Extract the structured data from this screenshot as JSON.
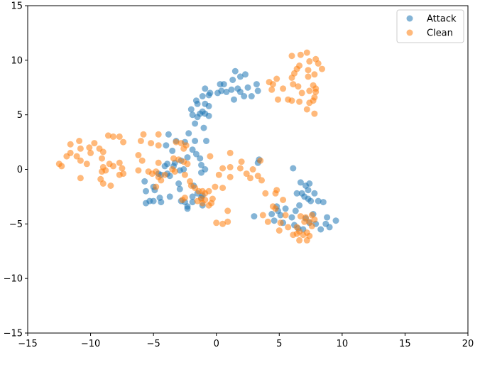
{
  "chart_data": {
    "type": "scatter",
    "title": "",
    "xlabel": "",
    "ylabel": "",
    "xlim": [
      -15,
      20
    ],
    "ylim": [
      -15,
      15
    ],
    "xticks": [
      -15,
      -10,
      -5,
      0,
      5,
      10,
      15,
      20
    ],
    "yticks": [
      -15,
      -10,
      -5,
      0,
      5,
      10,
      15
    ],
    "grid": false,
    "legend_position": "top-right",
    "series": [
      {
        "name": "Attack",
        "color": "#1f77b4",
        "points": [
          [
            1.5,
            9.0
          ],
          [
            2.3,
            8.7
          ],
          [
            1.9,
            8.5
          ],
          [
            1.3,
            8.2
          ],
          [
            0.6,
            7.8
          ],
          [
            0.3,
            7.8
          ],
          [
            1.7,
            7.4
          ],
          [
            2.5,
            7.5
          ],
          [
            3.2,
            7.8
          ],
          [
            3.3,
            7.2
          ],
          [
            2.8,
            6.7
          ],
          [
            2.2,
            6.7
          ],
          [
            1.9,
            7.1
          ],
          [
            1.2,
            7.3
          ],
          [
            0.8,
            7.1
          ],
          [
            0.1,
            7.0
          ],
          [
            0.4,
            7.2
          ],
          [
            -0.5,
            7.0
          ],
          [
            -0.9,
            7.4
          ],
          [
            -1.1,
            6.7
          ],
          [
            -0.6,
            6.8
          ],
          [
            -1.6,
            6.3
          ],
          [
            -1.5,
            6.0
          ],
          [
            -2.0,
            5.5
          ],
          [
            -0.6,
            5.8
          ],
          [
            -0.9,
            6.0
          ],
          [
            -1.1,
            5.3
          ],
          [
            -0.9,
            5.1
          ],
          [
            -1.3,
            5.1
          ],
          [
            -0.6,
            4.9
          ],
          [
            -1.9,
            5.0
          ],
          [
            -1.5,
            4.8
          ],
          [
            -1.7,
            4.2
          ],
          [
            -1.0,
            3.8
          ],
          [
            1.4,
            6.4
          ],
          [
            -2.2,
            3.3
          ],
          [
            -3.8,
            3.2
          ],
          [
            -3.2,
            2.6
          ],
          [
            -4.0,
            2.2
          ],
          [
            -2.5,
            2.5
          ],
          [
            -1.7,
            2.6
          ],
          [
            -0.8,
            2.6
          ],
          [
            -3.5,
            1.7
          ],
          [
            -1.9,
            1.8
          ],
          [
            -2.3,
            1.1
          ],
          [
            -1.6,
            1.4
          ],
          [
            -1.3,
            1.0
          ],
          [
            -2.8,
            0.8
          ],
          [
            -3.3,
            0.6
          ],
          [
            -3.9,
            0.5
          ],
          [
            -4.1,
            0.3
          ],
          [
            -3.4,
            0.3
          ],
          [
            -1.2,
            0.4
          ],
          [
            -2.6,
            0.0
          ],
          [
            -2.9,
            -0.1
          ],
          [
            -3.7,
            -0.6
          ],
          [
            -3.9,
            -0.4
          ],
          [
            -4.4,
            -0.5
          ],
          [
            -4.6,
            -0.4
          ],
          [
            -5.7,
            -1.1
          ],
          [
            -5.0,
            -1.6
          ],
          [
            -4.9,
            -1.9
          ],
          [
            -5.6,
            -2.0
          ],
          [
            -4.5,
            -2.6
          ],
          [
            -5.3,
            -2.9
          ],
          [
            -5.0,
            -2.9
          ],
          [
            -5.6,
            -3.1
          ],
          [
            -4.4,
            -3.0
          ],
          [
            -3.7,
            -2.5
          ],
          [
            -3.0,
            -1.3
          ],
          [
            -2.9,
            -1.8
          ],
          [
            -1.8,
            -1.5
          ],
          [
            -1.5,
            -2.2
          ],
          [
            -1.9,
            -2.5
          ],
          [
            -2.5,
            -3.0
          ],
          [
            -2.3,
            -3.4
          ],
          [
            -2.3,
            -3.6
          ],
          [
            -2.8,
            -2.9
          ],
          [
            -1.9,
            -3.0
          ],
          [
            -1.2,
            -2.6
          ],
          [
            -1.1,
            -3.3
          ],
          [
            -1.1,
            -2.4
          ],
          [
            -1.2,
            -0.3
          ],
          [
            -0.9,
            0.0
          ],
          [
            3.4,
            0.9
          ],
          [
            3.3,
            0.6
          ],
          [
            3.0,
            -4.3
          ],
          [
            4.4,
            -4.1
          ],
          [
            4.6,
            -4.7
          ],
          [
            4.9,
            -3.8
          ],
          [
            4.8,
            -3.4
          ],
          [
            5.1,
            -4.2
          ],
          [
            5.5,
            -3.6
          ],
          [
            5.3,
            -4.9
          ],
          [
            6.2,
            -5.1
          ],
          [
            6.5,
            -5.4
          ],
          [
            6.0,
            -4.4
          ],
          [
            6.3,
            -3.8
          ],
          [
            6.4,
            -2.2
          ],
          [
            6.1,
            0.1
          ],
          [
            6.7,
            -1.2
          ],
          [
            7.1,
            -1.5
          ],
          [
            7.4,
            -1.3
          ],
          [
            6.8,
            -2.2
          ],
          [
            7.0,
            -2.5
          ],
          [
            7.3,
            -2.7
          ],
          [
            7.3,
            -1.9
          ],
          [
            7.5,
            -2.9
          ],
          [
            7.8,
            -2.2
          ],
          [
            8.1,
            -2.9
          ],
          [
            8.5,
            -3.0
          ],
          [
            6.6,
            -3.3
          ],
          [
            7.7,
            -4.1
          ],
          [
            7.1,
            -4.5
          ],
          [
            7.9,
            -5.0
          ],
          [
            8.8,
            -4.4
          ],
          [
            8.7,
            -5.0
          ],
          [
            8.3,
            -5.5
          ],
          [
            9.0,
            -5.3
          ],
          [
            9.5,
            -4.7
          ],
          [
            7.4,
            -4.9
          ],
          [
            6.9,
            -5.5
          ]
        ]
      },
      {
        "name": "Clean",
        "color": "#ff7f0e",
        "points": [
          [
            6.0,
            10.4
          ],
          [
            6.7,
            10.5
          ],
          [
            7.2,
            10.7
          ],
          [
            7.4,
            9.9
          ],
          [
            6.6,
            9.5
          ],
          [
            7.3,
            9.1
          ],
          [
            6.4,
            9.2
          ],
          [
            6.2,
            8.8
          ],
          [
            7.9,
            10.1
          ],
          [
            8.1,
            9.7
          ],
          [
            8.4,
            9.2
          ],
          [
            7.8,
            8.7
          ],
          [
            7.3,
            8.5
          ],
          [
            6.0,
            8.4
          ],
          [
            4.8,
            8.3
          ],
          [
            4.2,
            8.0
          ],
          [
            4.5,
            7.8
          ],
          [
            4.4,
            7.3
          ],
          [
            5.3,
            7.4
          ],
          [
            6.1,
            7.8
          ],
          [
            6.5,
            7.6
          ],
          [
            6.8,
            7.0
          ],
          [
            7.7,
            7.7
          ],
          [
            7.9,
            7.4
          ],
          [
            7.4,
            7.2
          ],
          [
            7.8,
            6.6
          ],
          [
            7.7,
            6.3
          ],
          [
            7.4,
            6.1
          ],
          [
            7.2,
            5.5
          ],
          [
            7.8,
            5.1
          ],
          [
            4.9,
            6.4
          ],
          [
            5.7,
            6.4
          ],
          [
            6.0,
            6.3
          ],
          [
            6.6,
            6.2
          ],
          [
            7.9,
            7.1
          ],
          [
            -12.5,
            0.5
          ],
          [
            -12.3,
            0.3
          ],
          [
            -11.9,
            1.2
          ],
          [
            -11.6,
            1.5
          ],
          [
            -11.1,
            1.2
          ],
          [
            -11.6,
            2.3
          ],
          [
            -10.9,
            2.6
          ],
          [
            -10.8,
            1.9
          ],
          [
            -10.1,
            2.0
          ],
          [
            -10.0,
            1.5
          ],
          [
            -9.7,
            2.4
          ],
          [
            -9.3,
            1.9
          ],
          [
            -9.0,
            1.6
          ],
          [
            -9.1,
            1.0
          ],
          [
            -10.8,
            0.8
          ],
          [
            -10.3,
            0.5
          ],
          [
            -9.0,
            0.2
          ],
          [
            -8.8,
            -0.1
          ],
          [
            -9.1,
            -0.2
          ],
          [
            -8.5,
            0.5
          ],
          [
            -8.2,
            0.3
          ],
          [
            -8.6,
            3.1
          ],
          [
            -8.2,
            3.0
          ],
          [
            -7.7,
            3.0
          ],
          [
            -7.4,
            2.5
          ],
          [
            -7.7,
            0.6
          ],
          [
            -7.5,
            0.1
          ],
          [
            -7.4,
            -0.4
          ],
          [
            -7.7,
            -0.5
          ],
          [
            -9.2,
            -0.9
          ],
          [
            -9.0,
            -1.3
          ],
          [
            -8.4,
            -1.5
          ],
          [
            -10.8,
            -0.8
          ],
          [
            -6.2,
            1.3
          ],
          [
            -6.2,
            -0.1
          ],
          [
            -5.9,
            0.8
          ],
          [
            -5.8,
            3.2
          ],
          [
            -6.0,
            2.6
          ],
          [
            -5.2,
            2.4
          ],
          [
            -4.6,
            3.2
          ],
          [
            -4.6,
            2.2
          ],
          [
            -4.6,
            0.6
          ],
          [
            -3.4,
            1.0
          ],
          [
            -3.0,
            0.9
          ],
          [
            -2.6,
            0.7
          ],
          [
            -2.3,
            0.5
          ],
          [
            -3.3,
            -0.2
          ],
          [
            -3.5,
            0.0
          ],
          [
            -4.6,
            -0.7
          ],
          [
            -4.4,
            -1.0
          ],
          [
            -4.8,
            -1.6
          ],
          [
            -5.4,
            -0.2
          ],
          [
            -5.1,
            -0.4
          ],
          [
            -4.8,
            -0.2
          ],
          [
            -4.1,
            -0.5
          ],
          [
            -3.2,
            2.5
          ],
          [
            -2.8,
            2.4
          ],
          [
            -2.4,
            2.2
          ],
          [
            -2.6,
            1.9
          ],
          [
            -2.5,
            -0.5
          ],
          [
            -2.1,
            -1.1
          ],
          [
            -2.0,
            -1.5
          ],
          [
            -1.7,
            -1.7
          ],
          [
            -1.4,
            -2.0
          ],
          [
            -1.2,
            -2.7
          ],
          [
            -0.9,
            -2.8
          ],
          [
            -1.5,
            -2.9
          ],
          [
            -1.1,
            -3.1
          ],
          [
            -1.1,
            -2.0
          ],
          [
            -0.9,
            -2.2
          ],
          [
            -0.6,
            -2.0
          ],
          [
            -0.3,
            -2.7
          ],
          [
            -0.4,
            -3.1
          ],
          [
            -0.6,
            -3.3
          ],
          [
            -2.5,
            -2.6
          ],
          [
            -2.7,
            -2.8
          ],
          [
            0.5,
            -1.7
          ],
          [
            -0.1,
            -1.6
          ],
          [
            0.0,
            -4.9
          ],
          [
            0.5,
            -5.0
          ],
          [
            0.9,
            -4.8
          ],
          [
            0.9,
            -3.8
          ],
          [
            0.2,
            -0.5
          ],
          [
            -0.5,
            1.2
          ],
          [
            0.5,
            0.1
          ],
          [
            1.1,
            0.2
          ],
          [
            1.1,
            1.5
          ],
          [
            1.1,
            -0.7
          ],
          [
            1.9,
            0.1
          ],
          [
            2.0,
            0.7
          ],
          [
            2.4,
            -0.4
          ],
          [
            2.7,
            -0.8
          ],
          [
            2.9,
            0.0
          ],
          [
            3.5,
            0.8
          ],
          [
            3.3,
            -0.6
          ],
          [
            3.6,
            -1.0
          ],
          [
            3.9,
            -2.2
          ],
          [
            4.7,
            -2.2
          ],
          [
            4.8,
            -1.9
          ],
          [
            5.3,
            -2.8
          ],
          [
            3.7,
            -4.2
          ],
          [
            4.1,
            -4.8
          ],
          [
            4.5,
            -3.4
          ],
          [
            4.7,
            -3.6
          ],
          [
            5.1,
            -4.9
          ],
          [
            5.5,
            -4.2
          ],
          [
            5.0,
            -5.6
          ],
          [
            5.7,
            -5.3
          ],
          [
            6.1,
            -6.0
          ],
          [
            6.4,
            -5.3
          ],
          [
            6.7,
            -4.3
          ],
          [
            7.1,
            -4.4
          ],
          [
            7.4,
            -4.8
          ],
          [
            7.2,
            -5.8
          ],
          [
            7.6,
            -5.2
          ],
          [
            7.4,
            -6.1
          ],
          [
            6.9,
            -6.0
          ],
          [
            6.6,
            -6.5
          ],
          [
            7.2,
            -6.5
          ],
          [
            7.8,
            -4.6
          ],
          [
            7.6,
            -4.2
          ],
          [
            7.0,
            -4.8
          ],
          [
            6.4,
            -5.9
          ],
          [
            6.6,
            -5.7
          ]
        ]
      }
    ]
  }
}
